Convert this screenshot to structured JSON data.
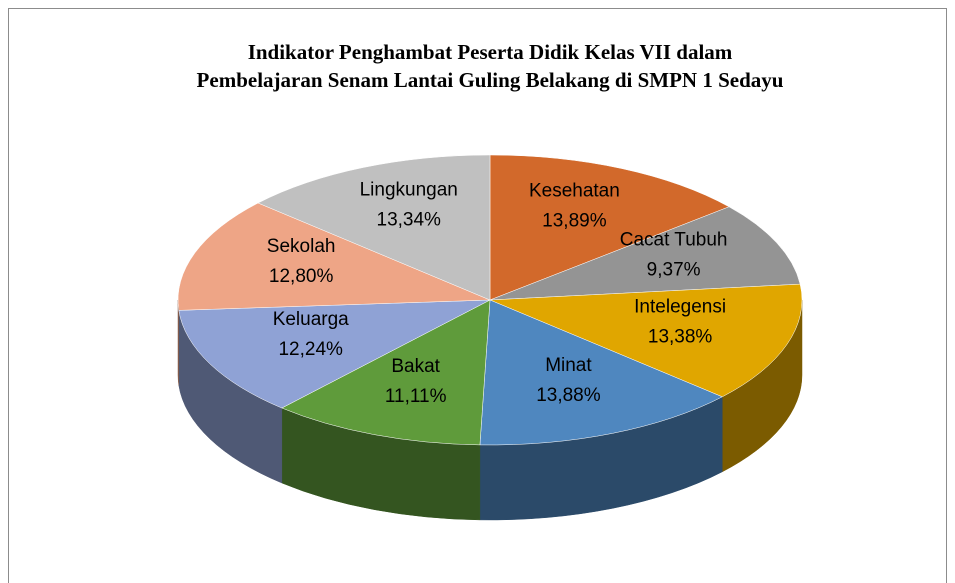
{
  "chart_data": {
    "type": "pie",
    "title": "Indikator Penghambat Peserta Didik Kelas VII dalam\nPembelajaran Senam Lantai Guling Belakang di SMPN 1 Sedayu",
    "categories": [
      "Kesehatan",
      "Cacat Tubuh",
      "Intelegensi",
      "Minat",
      "Bakat",
      "Keluarga",
      "Sekolah",
      "Lingkungan"
    ],
    "values": [
      13.89,
      9.37,
      13.38,
      13.88,
      11.11,
      12.24,
      12.8,
      13.34
    ],
    "value_labels": [
      "13,89%",
      "9,37%",
      "13,38%",
      "13,88%",
      "11,11%",
      "12,24%",
      "12,80%",
      "13,34%"
    ],
    "colors": [
      "#d2692b",
      "#949494",
      "#e0a600",
      "#4f87bf",
      "#5f9b3b",
      "#8fa2d5",
      "#eea586",
      "#c0c0c0"
    ]
  }
}
